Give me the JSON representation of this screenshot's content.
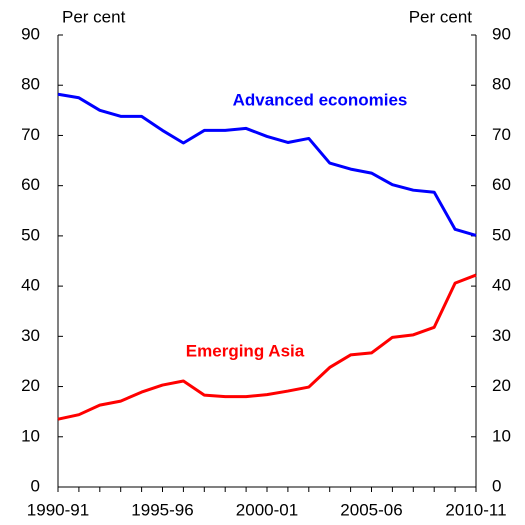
{
  "chart_data": {
    "type": "line",
    "y_label": "Per cent",
    "y2_label": "Per cent",
    "categories": [
      "1990-91",
      null,
      null,
      null,
      null,
      "1995-96",
      null,
      null,
      null,
      null,
      "2000-01",
      null,
      null,
      null,
      null,
      "2005-06",
      null,
      null,
      null,
      null,
      "2010-11"
    ],
    "series": [
      {
        "name": "Advanced economies",
        "color": "#0000ff",
        "values": [
          78.2,
          77.5,
          75,
          73.8,
          73.8,
          71,
          68.5,
          71,
          71,
          71.4,
          69.8,
          68.6,
          69.4,
          64.5,
          63.3,
          62.5,
          60.2,
          59.1,
          58.7,
          51.3,
          50.1
        ]
      },
      {
        "name": "Emerging Asia",
        "color": "#ff0000",
        "values": [
          13.5,
          14.4,
          16.3,
          17.1,
          18.9,
          20.3,
          21.1,
          18.3,
          18,
          18,
          18.4,
          19.1,
          19.9,
          23.8,
          26.3,
          26.7,
          29.8,
          30.3,
          31.8,
          40.6,
          42.2
        ]
      }
    ],
    "ylim": [
      0,
      90
    ],
    "yticks": [
      0,
      10,
      20,
      30,
      40,
      50,
      60,
      70,
      80,
      90
    ],
    "y2lim": [
      0,
      90
    ],
    "y2ticks": [
      0,
      10,
      20,
      30,
      40,
      50,
      60,
      70,
      80,
      90
    ],
    "grid": false
  }
}
